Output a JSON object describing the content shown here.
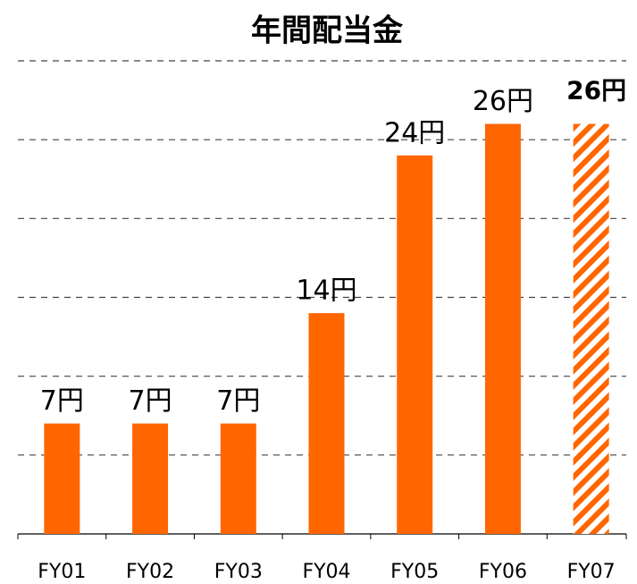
{
  "chart_data": {
    "type": "bar",
    "title": "年間配当金",
    "categories": [
      "FY01",
      "FY02",
      "FY03",
      "FY04",
      "FY05",
      "FY06",
      "FY07"
    ],
    "values": [
      7,
      7,
      7,
      14,
      24,
      26,
      26
    ],
    "value_labels": [
      "7円",
      "7円",
      "7円",
      "14円",
      "24円",
      "26円",
      "26円"
    ],
    "bar_styles": [
      "solid",
      "solid",
      "solid",
      "solid",
      "solid",
      "solid",
      "hatched"
    ],
    "color": "#ff6600",
    "highlight_label_color": "#ee0000",
    "ylim": [
      0,
      30
    ],
    "yticks": [
      0,
      5,
      10,
      15,
      20,
      25,
      30
    ],
    "grid": true
  }
}
